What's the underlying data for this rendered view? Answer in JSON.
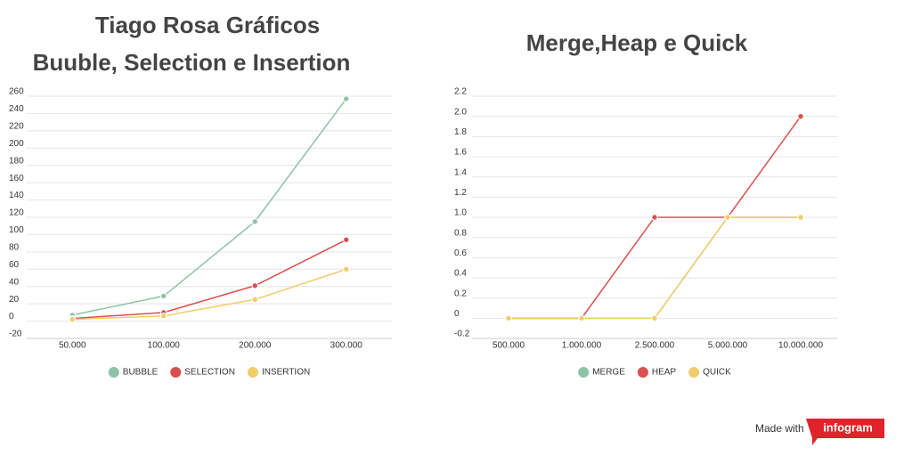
{
  "chart_data": [
    {
      "type": "line",
      "title": "Tiago Rosa Gráficos",
      "subtitle": "Buuble, Selection e Insertion",
      "categories": [
        "50.000",
        "100.000",
        "200.000",
        "300.000"
      ],
      "series": [
        {
          "name": "BUBBLE",
          "color": "#8ec3a7",
          "values": [
            7,
            29,
            115,
            257
          ]
        },
        {
          "name": "SELECTION",
          "color": "#d95050",
          "values": [
            3,
            10,
            41,
            94
          ]
        },
        {
          "name": "INSERTION",
          "color": "#f0cd6a",
          "values": [
            2,
            6,
            25,
            60
          ]
        }
      ],
      "ylim": [
        -20,
        260
      ],
      "yticks": [
        -20,
        0,
        20,
        40,
        60,
        80,
        100,
        120,
        140,
        160,
        180,
        200,
        220,
        240,
        260
      ],
      "grid": true
    },
    {
      "type": "line",
      "title": "Merge,Heap e Quick",
      "categories": [
        "500.000",
        "1.000.000",
        "2.500.000",
        "5.000.000",
        "10.000.000"
      ],
      "series": [
        {
          "name": "MERGE",
          "color": "#8ec3a7",
          "values": [
            0,
            0,
            0,
            1,
            1
          ]
        },
        {
          "name": "HEAP",
          "color": "#d95050",
          "values": [
            0,
            0,
            1,
            1,
            2
          ]
        },
        {
          "name": "QUICK",
          "color": "#f0cd6a",
          "values": [
            0,
            0,
            0,
            1,
            1
          ]
        }
      ],
      "ylim": [
        -0.2,
        2.2
      ],
      "yticks": [
        -0.2,
        0,
        0.2,
        0.4,
        0.6,
        0.8,
        {
          "value": 1,
          "label": "1.0"
        },
        1.2,
        1.4,
        1.6,
        1.8,
        {
          "value": 2,
          "label": "2.0"
        },
        2.2
      ],
      "grid": true
    }
  ],
  "footer": {
    "text": "Made with",
    "brand": "infogram"
  }
}
